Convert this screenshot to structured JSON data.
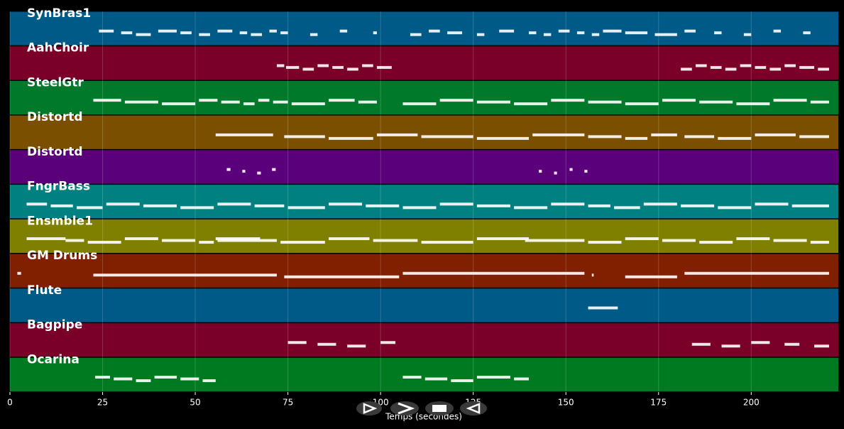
{
  "chart_data": {
    "type": "pianoroll",
    "x_label": "Temps (secondes)",
    "xlim": [
      0,
      223.5
    ],
    "xticks": [
      0,
      25,
      50,
      75,
      100,
      125,
      150,
      175,
      200
    ],
    "grid": true,
    "tracks": [
      {
        "name": "SynBras1",
        "color": "#005a87",
        "notes": [
          [
            24,
            28
          ],
          [
            30,
            33
          ],
          [
            34,
            38
          ],
          [
            40,
            45
          ],
          [
            46,
            49
          ],
          [
            51,
            54
          ],
          [
            56,
            60
          ],
          [
            62,
            64
          ],
          [
            65,
            68
          ],
          [
            70,
            72
          ],
          [
            73,
            75
          ],
          [
            81,
            83
          ],
          [
            89,
            91
          ],
          [
            98,
            99
          ],
          [
            108,
            111
          ],
          [
            113,
            116
          ],
          [
            118,
            122
          ],
          [
            126,
            128
          ],
          [
            132,
            136
          ],
          [
            140,
            142
          ],
          [
            144,
            146
          ],
          [
            148,
            151
          ],
          [
            153,
            155
          ],
          [
            157,
            159
          ],
          [
            160,
            165
          ],
          [
            166,
            172
          ],
          [
            174,
            180
          ],
          [
            182,
            185
          ],
          [
            190,
            192
          ],
          [
            198,
            200
          ],
          [
            206,
            208
          ],
          [
            214,
            216
          ]
        ]
      },
      {
        "name": "AahChoir",
        "color": "#7a002a",
        "notes": [
          [
            72,
            74
          ],
          [
            74.5,
            78
          ],
          [
            79,
            82
          ],
          [
            83,
            86
          ],
          [
            87,
            90
          ],
          [
            91,
            94
          ],
          [
            95,
            98
          ],
          [
            99,
            103
          ],
          [
            181,
            184
          ],
          [
            185,
            188
          ],
          [
            189,
            192
          ],
          [
            193,
            196
          ],
          [
            197,
            200
          ],
          [
            201,
            204
          ],
          [
            205,
            208
          ],
          [
            209,
            212
          ],
          [
            213,
            217
          ],
          [
            218,
            221
          ]
        ]
      },
      {
        "name": "SteelGtr",
        "color": "#007a2a",
        "notes": [
          [
            22.5,
            30
          ],
          [
            31,
            40
          ],
          [
            41,
            50
          ],
          [
            51,
            56
          ],
          [
            57,
            62
          ],
          [
            63,
            66
          ],
          [
            67,
            70
          ],
          [
            71,
            75
          ],
          [
            76,
            85
          ],
          [
            86,
            93
          ],
          [
            94,
            99
          ],
          [
            106,
            115
          ],
          [
            116,
            125
          ],
          [
            126,
            135
          ],
          [
            136,
            145
          ],
          [
            146,
            155
          ],
          [
            156,
            165
          ],
          [
            166,
            175
          ],
          [
            176,
            185
          ],
          [
            186,
            195
          ],
          [
            196,
            205
          ],
          [
            206,
            215
          ],
          [
            216,
            221
          ]
        ]
      },
      {
        "name": "Distortd",
        "color": "#7a5000",
        "notes": [
          [
            55.5,
            71
          ],
          [
            74,
            85
          ],
          [
            86,
            98
          ],
          [
            99,
            110
          ],
          [
            111,
            125
          ],
          [
            126,
            140
          ],
          [
            141,
            155
          ],
          [
            156,
            165
          ],
          [
            166,
            172
          ],
          [
            173,
            180
          ],
          [
            182,
            190
          ],
          [
            191,
            200
          ],
          [
            201,
            212
          ],
          [
            213,
            221
          ]
        ]
      },
      {
        "name": "Distortd",
        "color": "#5a007a",
        "notes": [
          [
            58.5,
            59.5
          ],
          [
            62.7,
            63.5
          ],
          [
            66.7,
            67.7
          ],
          [
            70.7,
            71.7
          ],
          [
            142.7,
            143.5
          ],
          [
            146.8,
            147.6
          ],
          [
            151,
            151.8
          ],
          [
            155,
            155.8
          ]
        ]
      },
      {
        "name": "FngrBass",
        "color": "#008080",
        "notes": [
          [
            4.5,
            10
          ],
          [
            11,
            17
          ],
          [
            18,
            25
          ],
          [
            26,
            35
          ],
          [
            36,
            45
          ],
          [
            46,
            55
          ],
          [
            56,
            65
          ],
          [
            66,
            74
          ],
          [
            75,
            85
          ],
          [
            86,
            95
          ],
          [
            96,
            105
          ],
          [
            106,
            115
          ],
          [
            116,
            125
          ],
          [
            126,
            135
          ],
          [
            136,
            145
          ],
          [
            146,
            155
          ],
          [
            156,
            162
          ],
          [
            163,
            170
          ],
          [
            171,
            180
          ],
          [
            181,
            190
          ],
          [
            191,
            200
          ],
          [
            201,
            210
          ],
          [
            211,
            221
          ]
        ]
      },
      {
        "name": "Ensmble1",
        "color": "#808000",
        "notes": [
          [
            4.5,
            15
          ],
          [
            15,
            20
          ],
          [
            21,
            30
          ],
          [
            31,
            40
          ],
          [
            41,
            50
          ],
          [
            51,
            55
          ],
          [
            55.5,
            67.5
          ],
          [
            56,
            72
          ],
          [
            73,
            85
          ],
          [
            86,
            97
          ],
          [
            98,
            110
          ],
          [
            111,
            125
          ],
          [
            126,
            140
          ],
          [
            139,
            155
          ],
          [
            156,
            165
          ],
          [
            166,
            175
          ],
          [
            176,
            185
          ],
          [
            186,
            195
          ],
          [
            196,
            205
          ],
          [
            206,
            215
          ],
          [
            216,
            221
          ]
        ]
      },
      {
        "name": "GM Drums",
        "color": "#802000",
        "notes": [
          [
            2,
            3
          ],
          [
            22.5,
            72
          ],
          [
            74,
            105
          ],
          [
            106,
            155
          ],
          [
            157,
            157.5
          ],
          [
            166,
            180
          ],
          [
            182,
            221
          ]
        ]
      },
      {
        "name": "Flute",
        "color": "#005a87",
        "notes": [
          [
            156,
            164
          ]
        ]
      },
      {
        "name": "Bagpipe",
        "color": "#7a002a",
        "notes": [
          [
            75,
            80
          ],
          [
            83,
            88
          ],
          [
            91,
            96
          ],
          [
            100,
            104
          ],
          [
            184,
            189
          ],
          [
            192,
            197
          ],
          [
            200,
            205
          ],
          [
            209,
            213
          ],
          [
            217,
            221
          ]
        ]
      },
      {
        "name": "Ocarina",
        "color": "#007a20",
        "notes": [
          [
            23,
            27
          ],
          [
            28,
            33
          ],
          [
            34,
            38
          ],
          [
            39,
            45
          ],
          [
            46,
            51
          ],
          [
            52,
            55.5
          ],
          [
            106,
            111
          ],
          [
            112,
            118
          ],
          [
            119,
            125
          ],
          [
            126,
            135
          ],
          [
            136,
            140
          ]
        ]
      }
    ]
  }
}
